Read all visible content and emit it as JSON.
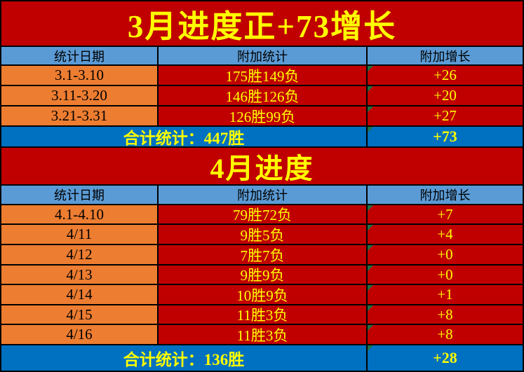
{
  "palette": {
    "title_bg": "#C00000",
    "data_bg": "#C00000",
    "header_bg": "#5B9BD5",
    "date_bg": "#ED7D31",
    "summary_bg": "#0070C0",
    "accent_yellow": "#FFFF00",
    "text_black": "#000000",
    "border": "#000000",
    "flag_green": "#1E7145"
  },
  "icons": {
    "error_flag": "green top-left corner triangle (spreadsheet error indicator)"
  },
  "sections": [
    {
      "title": "3月进度正+73增长",
      "headers": [
        "统计日期",
        "附加统计",
        "附加增长"
      ],
      "rows": [
        {
          "date": "3.1-3.10",
          "stats": "175胜149负",
          "gain": "+26"
        },
        {
          "date": "3.11-3.20",
          "stats": "146胜126负",
          "gain": "+20"
        },
        {
          "date": "3.21-3.31",
          "stats": "126胜99负",
          "gain": "+27"
        }
      ],
      "summary": {
        "label": "合计统计：447胜",
        "gain": "+73"
      }
    },
    {
      "title": "4月进度",
      "headers": [
        "统计日期",
        "附加统计",
        "附加增长"
      ],
      "rows": [
        {
          "date": "4.1-4.10",
          "stats": "79胜72负",
          "gain": "+7"
        },
        {
          "date": "4/11",
          "stats": "9胜5负",
          "gain": "+4"
        },
        {
          "date": "4/12",
          "stats": "7胜7负",
          "gain": "+0"
        },
        {
          "date": "4/13",
          "stats": "9胜9负",
          "gain": "+0"
        },
        {
          "date": "4/14",
          "stats": "10胜9负",
          "gain": "+1"
        },
        {
          "date": "4/15",
          "stats": "11胜3负",
          "gain": "+8"
        },
        {
          "date": "4/16",
          "stats": "11胜3负",
          "gain": "+8"
        }
      ],
      "summary": {
        "label": "合计统计：136胜",
        "gain": "+28"
      }
    }
  ]
}
